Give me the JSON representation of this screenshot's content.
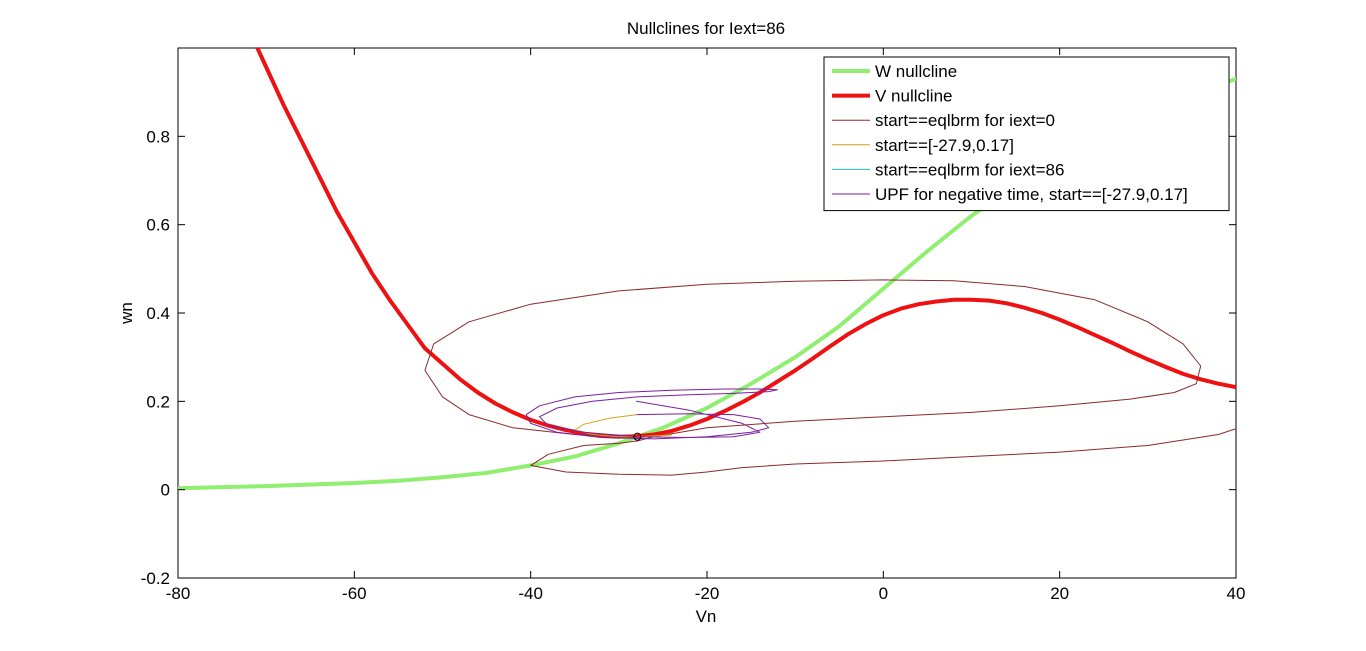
{
  "chart_data": {
    "type": "line",
    "title": "Nullclines for Iext=86",
    "xlabel": "Vn",
    "ylabel": "wn",
    "xlim": [
      -80,
      40
    ],
    "ylim": [
      -0.2,
      1.0
    ],
    "xticks": [
      -80,
      -60,
      -40,
      -20,
      0,
      20,
      40
    ],
    "xtick_labels": [
      "-80",
      "-60",
      "-40",
      "-20",
      "0",
      "20",
      "40"
    ],
    "yticks": [
      -0.2,
      0,
      0.2,
      0.4,
      0.6,
      0.8
    ],
    "ytick_labels": [
      "-0.2",
      "0",
      "0.2",
      "0.4",
      "0.6",
      "0.8"
    ],
    "grid": false,
    "legend_position": "top-right",
    "series": [
      {
        "name": "W nullcline",
        "color": "#90ee70",
        "width": "thick",
        "x": [
          -80,
          -70,
          -60,
          -55,
          -50,
          -45,
          -40,
          -35,
          -30,
          -25,
          -20,
          -15,
          -10,
          -5,
          0,
          5,
          10,
          15,
          20,
          25,
          30,
          35,
          40
        ],
        "y": [
          0.003,
          0.008,
          0.015,
          0.02,
          0.028,
          0.038,
          0.055,
          0.075,
          0.105,
          0.14,
          0.185,
          0.24,
          0.3,
          0.37,
          0.455,
          0.54,
          0.62,
          0.69,
          0.75,
          0.8,
          0.85,
          0.895,
          0.93
        ]
      },
      {
        "name": "V nullcline",
        "color": "#ee1111",
        "width": "thick",
        "x": [
          -71,
          -68,
          -65,
          -62,
          -60,
          -58,
          -56,
          -54,
          -52,
          -50,
          -48,
          -46,
          -44,
          -42,
          -40,
          -38,
          -36,
          -34,
          -32,
          -30,
          -28,
          -26,
          -24,
          -22,
          -20,
          -18,
          -16,
          -14,
          -12,
          -10,
          -8,
          -6,
          -4,
          -2,
          0,
          2,
          4,
          6,
          8,
          10,
          12,
          14,
          16,
          18,
          20,
          22,
          24,
          26,
          28,
          30,
          32,
          34,
          36,
          38,
          40
        ],
        "y": [
          1.0,
          0.87,
          0.75,
          0.63,
          0.56,
          0.49,
          0.43,
          0.375,
          0.32,
          0.285,
          0.25,
          0.22,
          0.195,
          0.175,
          0.158,
          0.145,
          0.135,
          0.127,
          0.122,
          0.12,
          0.121,
          0.125,
          0.133,
          0.145,
          0.16,
          0.178,
          0.198,
          0.22,
          0.245,
          0.27,
          0.297,
          0.325,
          0.352,
          0.375,
          0.395,
          0.41,
          0.42,
          0.426,
          0.43,
          0.43,
          0.428,
          0.422,
          0.412,
          0.4,
          0.385,
          0.368,
          0.35,
          0.332,
          0.313,
          0.295,
          0.278,
          0.262,
          0.25,
          0.24,
          0.232
        ]
      },
      {
        "name": "start==eqlbrm for iext=0",
        "color": "#8b2a2a",
        "width": "thin",
        "x": [
          -28,
          -35,
          -42,
          -47,
          -50,
          -52,
          -51,
          -47,
          -40,
          -30,
          -20,
          -10,
          0,
          8,
          16,
          24,
          30,
          34,
          36,
          35.5,
          33,
          28,
          20,
          10,
          0,
          -10,
          -20,
          -26,
          -28,
          -30,
          -34,
          -38,
          -40,
          -36,
          -30,
          -24,
          -20,
          -16,
          -10,
          0,
          10,
          20,
          30,
          38,
          40
        ],
        "y": [
          0.12,
          0.125,
          0.14,
          0.17,
          0.21,
          0.27,
          0.33,
          0.38,
          0.42,
          0.45,
          0.465,
          0.472,
          0.475,
          0.473,
          0.46,
          0.43,
          0.38,
          0.33,
          0.28,
          0.24,
          0.22,
          0.205,
          0.19,
          0.175,
          0.165,
          0.155,
          0.14,
          0.12,
          0.11,
          0.105,
          0.1,
          0.08,
          0.055,
          0.04,
          0.035,
          0.033,
          0.04,
          0.05,
          0.058,
          0.065,
          0.075,
          0.085,
          0.1,
          0.125,
          0.138
        ]
      },
      {
        "name": "start==[-27.9,0.17]",
        "color": "#d4a017",
        "width": "thin",
        "x": [
          -27.9,
          -31,
          -34,
          -35,
          -33,
          -30,
          -28,
          -26,
          -24,
          -27.9
        ],
        "y": [
          0.17,
          0.162,
          0.148,
          0.135,
          0.125,
          0.12,
          0.12,
          0.121,
          0.124,
          0.12
        ]
      },
      {
        "name": "start==eqlbrm for iext=86",
        "color": "#20c0c0",
        "width": "thin",
        "x": [
          -27.9
        ],
        "y": [
          0.12
        ]
      },
      {
        "name": "UPF for negative time, start==[-27.9,0.17]",
        "color": "#7b1fa2",
        "width": "thin",
        "x": [
          -27.9,
          -22,
          -17,
          -14,
          -13,
          -15,
          -20,
          -26,
          -32,
          -37,
          -40,
          -40.5,
          -39,
          -35,
          -30,
          -24,
          -18,
          -14,
          -12,
          -13,
          -17,
          -22,
          -28,
          -33,
          -37,
          -39,
          -38,
          -34,
          -28,
          -22,
          -17,
          -14,
          -16,
          -22,
          -28
        ],
        "y": [
          0.17,
          0.172,
          0.17,
          0.16,
          0.14,
          0.13,
          0.12,
          0.115,
          0.118,
          0.13,
          0.15,
          0.17,
          0.19,
          0.21,
          0.22,
          0.225,
          0.228,
          0.228,
          0.226,
          0.222,
          0.218,
          0.215,
          0.21,
          0.2,
          0.185,
          0.165,
          0.145,
          0.13,
          0.12,
          0.118,
          0.12,
          0.13,
          0.15,
          0.18,
          0.2
        ]
      }
    ],
    "marker": {
      "x": -27.9,
      "y": 0.12,
      "shape": "circle"
    }
  }
}
